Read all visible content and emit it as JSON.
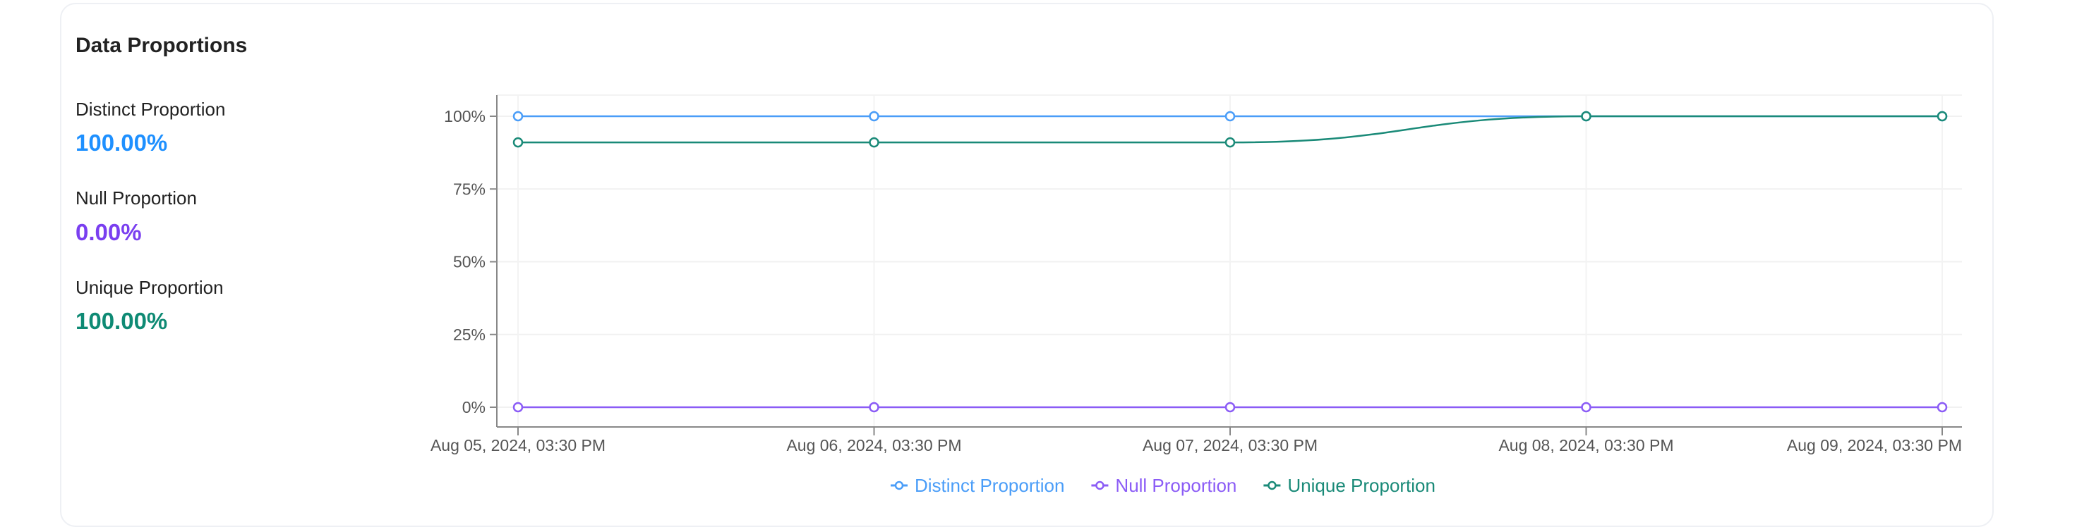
{
  "card": {
    "title": "Data Proportions",
    "stats": [
      {
        "label": "Distinct Proportion",
        "value": "100.00%",
        "color": "#1e90ff"
      },
      {
        "label": "Null Proportion",
        "value": "0.00%",
        "color": "#7a3ff0"
      },
      {
        "label": "Unique Proportion",
        "value": "100.00%",
        "color": "#0e8a74"
      }
    ]
  },
  "chart_data": {
    "type": "line",
    "x": [
      "Aug 05, 2024, 03:30 PM",
      "Aug 06, 2024, 03:30 PM",
      "Aug 07, 2024, 03:30 PM",
      "Aug 08, 2024, 03:30 PM",
      "Aug 09, 2024, 03:30 PM"
    ],
    "yticks": [
      "0%",
      "25%",
      "50%",
      "75%",
      "100%"
    ],
    "ylim": [
      0,
      1
    ],
    "grid": true,
    "legend": "bottom",
    "series": [
      {
        "name": "Distinct Proportion",
        "color": "#4a9df8",
        "values": [
          1,
          1,
          1,
          1,
          1
        ]
      },
      {
        "name": "Null Proportion",
        "color": "#8b5cf6",
        "values": [
          0,
          0,
          0,
          0,
          0
        ]
      },
      {
        "name": "Unique Proportion",
        "color": "#1a8a78",
        "values": [
          0.91,
          0.91,
          0.91,
          1,
          1
        ]
      }
    ]
  }
}
